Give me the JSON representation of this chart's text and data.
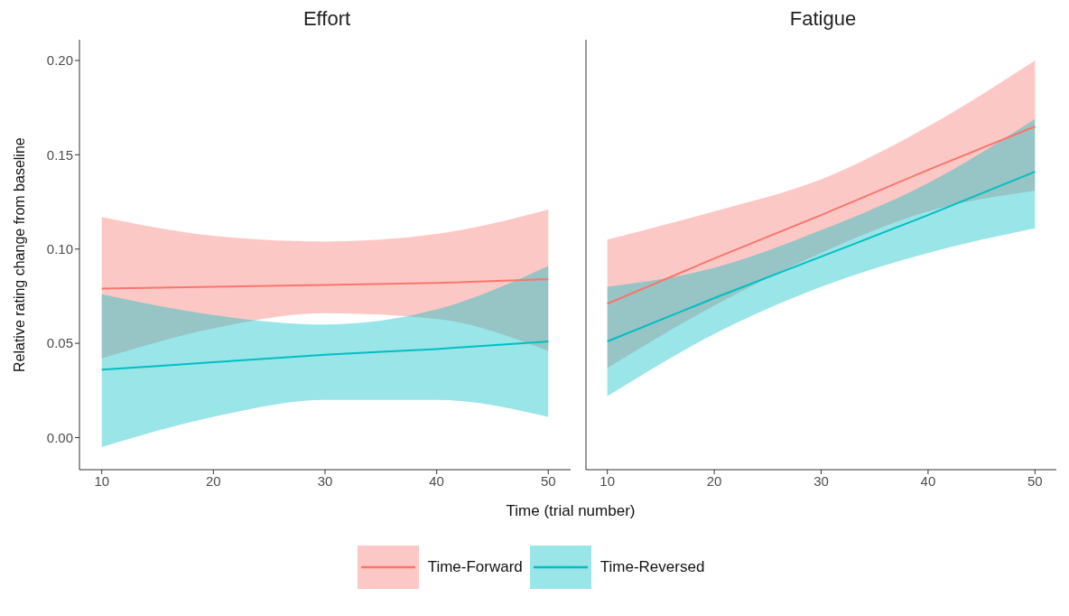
{
  "chart_data": [
    {
      "type": "line",
      "title": "Effort",
      "ylabel": "Relative rating change from baseline",
      "xlabel": "Time (trial number)",
      "x": [
        10,
        20,
        30,
        40,
        50
      ],
      "xlim": [
        8,
        52
      ],
      "xticks": [
        10,
        20,
        30,
        40,
        50
      ],
      "ylim": [
        -0.017,
        0.211
      ],
      "yticks": [
        {
          "value": 0,
          "label": "0.00"
        },
        {
          "value": 0.05,
          "label": "0.05"
        },
        {
          "value": 0.1,
          "label": "0.10"
        },
        {
          "value": 0.15,
          "label": "0.15"
        },
        {
          "value": 0.2,
          "label": "0.20"
        }
      ],
      "grid": false,
      "legend": "bottom",
      "series": [
        {
          "name": "Time-Forward",
          "color": "#f8766d",
          "values": [
            0.079,
            0.08,
            0.081,
            0.082,
            0.084
          ],
          "lower": [
            0.042,
            0.058,
            0.066,
            0.063,
            0.046
          ],
          "upper": [
            0.117,
            0.107,
            0.104,
            0.108,
            0.121
          ]
        },
        {
          "name": "Time-Reversed",
          "color": "#00bfc4",
          "values": [
            0.036,
            0.04,
            0.044,
            0.047,
            0.051
          ],
          "lower": [
            -0.005,
            0.011,
            0.02,
            0.02,
            0.011
          ],
          "upper": [
            0.076,
            0.065,
            0.06,
            0.068,
            0.091
          ]
        }
      ]
    },
    {
      "type": "line",
      "title": "Fatigue",
      "x": [
        10,
        20,
        30,
        40,
        50
      ],
      "xlim": [
        8,
        52
      ],
      "xticks": [
        10,
        20,
        30,
        40,
        50
      ],
      "ylim": [
        -0.017,
        0.211
      ],
      "grid": false,
      "tick_labels": "x",
      "series": [
        {
          "color": "#f8766d",
          "values": [
            0.071,
            0.095,
            0.118,
            0.142,
            0.165
          ],
          "lower": [
            0.037,
            0.07,
            0.098,
            0.12,
            0.131
          ],
          "upper": [
            0.105,
            0.12,
            0.137,
            0.165,
            0.2
          ]
        },
        {
          "color": "#00bfc4",
          "values": [
            0.051,
            0.074,
            0.096,
            0.118,
            0.141
          ],
          "lower": [
            0.022,
            0.055,
            0.08,
            0.098,
            0.111
          ],
          "upper": [
            0.08,
            0.09,
            0.11,
            0.135,
            0.169
          ]
        }
      ]
    }
  ]
}
